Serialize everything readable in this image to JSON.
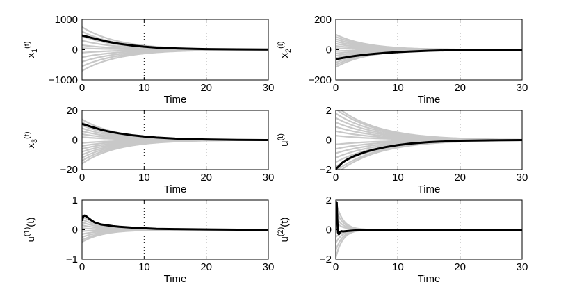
{
  "chart_data": [
    {
      "type": "line",
      "id": "x1",
      "ylabel_base": "x",
      "ylabel_sub": "1",
      "ylabel_sup": "",
      "ylabel_tail": "(t)",
      "xlabel": "Time",
      "xlim": [
        0,
        30
      ],
      "ylim": [
        -1000,
        1000
      ],
      "xticks": [
        "0",
        "10",
        "20",
        "30"
      ],
      "yticks": [
        "-1000",
        "0",
        "1000"
      ],
      "ytick_values": [
        -1000,
        0,
        1000
      ],
      "grid_x": [
        10,
        20
      ],
      "series": [
        {
          "name": "ensemble",
          "color": "#c8c8c8",
          "amplitudes": [
            750,
            600,
            450,
            300,
            150,
            50,
            -100,
            -250,
            -400,
            -550,
            -700
          ],
          "decay": 0.17,
          "start": 0
        },
        {
          "name": "mean",
          "color": "#000000",
          "x": [
            0,
            1,
            2,
            3,
            4,
            5,
            6,
            8,
            10,
            12,
            15,
            18,
            20,
            25,
            30
          ],
          "y": [
            470,
            420,
            370,
            320,
            270,
            230,
            195,
            140,
            100,
            70,
            45,
            28,
            20,
            10,
            6
          ]
        }
      ]
    },
    {
      "type": "line",
      "id": "x2",
      "ylabel_base": "x",
      "ylabel_sub": "2",
      "ylabel_sup": "",
      "ylabel_tail": "(t)",
      "xlabel": "Time",
      "xlim": [
        0,
        30
      ],
      "ylim": [
        -200,
        200
      ],
      "xticks": [
        "0",
        "10",
        "20",
        "30"
      ],
      "yticks": [
        "-200",
        "0",
        "200"
      ],
      "ytick_values": [
        -200,
        0,
        200
      ],
      "grid_x": [
        10,
        20
      ],
      "series": [
        {
          "name": "ensemble",
          "color": "#c8c8c8",
          "amplitudes": [
            100,
            85,
            70,
            55,
            40,
            25,
            10,
            -10,
            -25,
            -40,
            -55,
            -70,
            -85,
            -100,
            -115
          ],
          "decay": 0.2,
          "start": 0
        },
        {
          "name": "mean",
          "color": "#000000",
          "x": [
            0,
            1,
            2,
            3,
            4,
            5,
            6,
            8,
            10,
            12,
            15,
            18,
            20,
            25,
            30
          ],
          "y": [
            -62,
            -55,
            -48,
            -42,
            -37,
            -32,
            -28,
            -21,
            -16,
            -12,
            -7,
            -4,
            -3,
            -1,
            0
          ]
        }
      ]
    },
    {
      "type": "line",
      "id": "x3",
      "ylabel_base": "x",
      "ylabel_sub": "3",
      "ylabel_sup": "",
      "ylabel_tail": "(t)",
      "xlabel": "Time",
      "xlim": [
        0,
        30
      ],
      "ylim": [
        -20,
        20
      ],
      "xticks": [
        "0",
        "10",
        "20",
        "30"
      ],
      "yticks": [
        "-20",
        "0",
        "20"
      ],
      "ytick_values": [
        -20,
        0,
        20
      ],
      "grid_x": [
        10,
        20
      ],
      "series": [
        {
          "name": "ensemble",
          "color": "#c8c8c8",
          "amplitudes": [
            14,
            12,
            10,
            8,
            6,
            4,
            2,
            -2,
            -4,
            -6,
            -8,
            -10,
            -12,
            -14,
            -16
          ],
          "decay": 0.18,
          "start": 0
        },
        {
          "name": "mean",
          "color": "#000000",
          "x": [
            0,
            1,
            2,
            3,
            4,
            5,
            6,
            8,
            10,
            12,
            15,
            18,
            20,
            25,
            30
          ],
          "y": [
            11,
            9.6,
            8.3,
            7.1,
            6.1,
            5.2,
            4.5,
            3.3,
            2.4,
            1.7,
            1.0,
            0.6,
            0.4,
            0.1,
            0
          ]
        }
      ]
    },
    {
      "type": "line",
      "id": "u",
      "ylabel_base": "u",
      "ylabel_sub": "",
      "ylabel_sup": "",
      "ylabel_tail": "(t)",
      "xlabel": "Time",
      "xlim": [
        0,
        30
      ],
      "ylim": [
        -2,
        2
      ],
      "xticks": [
        "0",
        "10",
        "20",
        "30"
      ],
      "yticks": [
        "-2",
        "0",
        "2"
      ],
      "ytick_values": [
        -2,
        0,
        2
      ],
      "grid_x": [
        10,
        20
      ],
      "series": [
        {
          "name": "ensemble",
          "color": "#c8c8c8",
          "amplitudes": [
            2.3,
            2.1,
            1.8,
            1.5,
            1.2,
            0.9,
            0.6,
            0.3,
            -0.3,
            -0.6,
            -0.9,
            -1.2,
            -1.5,
            -1.8,
            -2.1,
            -2.3
          ],
          "decay": 0.15,
          "start": 0
        },
        {
          "name": "mean",
          "color": "#000000",
          "x": [
            0,
            0.3,
            0.7,
            1,
            1.5,
            2,
            3,
            4,
            5,
            6,
            8,
            10,
            12,
            15,
            20,
            25,
            30
          ],
          "y": [
            -1.95,
            -1.85,
            -1.7,
            -1.55,
            -1.4,
            -1.28,
            -1.08,
            -0.92,
            -0.78,
            -0.66,
            -0.48,
            -0.34,
            -0.24,
            -0.14,
            -0.05,
            -0.02,
            0
          ]
        }
      ]
    },
    {
      "type": "line",
      "id": "u1",
      "ylabel_base": "u",
      "ylabel_sub": "",
      "ylabel_sup": "(1)",
      "ylabel_tail": "(t)",
      "xlabel": "Time",
      "xlim": [
        0,
        30
      ],
      "ylim": [
        -1,
        1
      ],
      "xticks": [
        "0",
        "10",
        "20",
        "30"
      ],
      "yticks": [
        "-1",
        "0",
        "1"
      ],
      "ytick_values": [
        -1,
        0,
        1
      ],
      "grid_x": [
        10,
        20
      ],
      "series": [
        {
          "name": "ensemble",
          "color": "#c8c8c8",
          "amplitudes": [
            0.45,
            0.35,
            0.25,
            0.15,
            0.05,
            -0.05,
            -0.15,
            -0.25,
            -0.35,
            -0.42
          ],
          "decay": 0.3,
          "start": 0
        },
        {
          "name": "mean",
          "color": "#000000",
          "x": [
            0,
            0.2,
            0.4,
            0.7,
            1,
            1.5,
            2,
            3,
            4,
            5,
            6,
            8,
            10,
            12,
            15,
            20,
            25,
            30
          ],
          "y": [
            0.3,
            0.45,
            0.48,
            0.45,
            0.4,
            0.32,
            0.25,
            0.18,
            0.15,
            0.12,
            0.1,
            0.07,
            0.05,
            0.03,
            0.02,
            0.01,
            0,
            0
          ]
        }
      ]
    },
    {
      "type": "line",
      "id": "u2",
      "ylabel_base": "u",
      "ylabel_sub": "",
      "ylabel_sup": "(2)",
      "ylabel_tail": "(t)",
      "xlabel": "Time",
      "xlim": [
        0,
        30
      ],
      "ylim": [
        -2,
        2
      ],
      "xticks": [
        "0",
        "10",
        "20",
        "30"
      ],
      "yticks": [
        "-2",
        "0",
        "2"
      ],
      "ytick_values": [
        -2,
        0,
        2
      ],
      "grid_x": [
        10,
        20
      ],
      "series": [
        {
          "name": "ensemble",
          "color": "#c8c8c8",
          "amplitudes": [
            1.9,
            1.4,
            0.9,
            0.5,
            -0.5,
            -0.9,
            -1.4,
            -1.9
          ],
          "decay": 0.9,
          "start": 0
        },
        {
          "name": "mean",
          "color": "#000000",
          "x": [
            0,
            0.15,
            0.25,
            0.35,
            0.5,
            0.7,
            0.9,
            1.2,
            1.6,
            2,
            3,
            4,
            5,
            6,
            8,
            10,
            15,
            20,
            30
          ],
          "y": [
            1.9,
            1.85,
            0.6,
            -0.2,
            -0.3,
            -0.15,
            -0.1,
            -0.12,
            -0.1,
            -0.08,
            -0.05,
            -0.03,
            -0.02,
            -0.01,
            0,
            0,
            0,
            0,
            0
          ]
        }
      ]
    }
  ]
}
